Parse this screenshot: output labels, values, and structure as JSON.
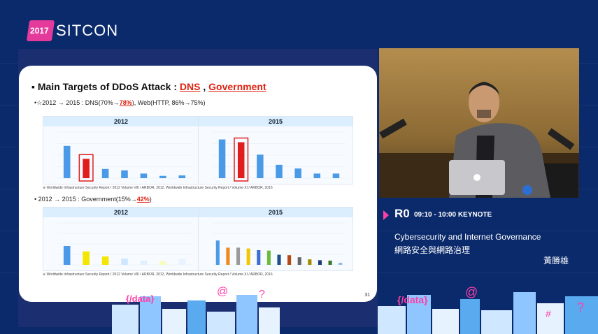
{
  "brand": {
    "year": "2017",
    "name": "SITCON"
  },
  "slide": {
    "title_prefix": "Main Targets of DDoS Attack : ",
    "title_dns": "DNS",
    "title_sep": ", ",
    "title_gov": "Government",
    "bullet1_prefix": "•☆2012 → 2015 : DNS(70%→",
    "bullet1_red": "78%",
    "bullet1_suffix": "), Web(HTTP, 86%→75%)",
    "bullet2_prefix": "•  2012 → 2015 : Government(15%→",
    "bullet2_red": "42%",
    "bullet2_suffix": ")",
    "chart_top_left_header": "2012",
    "chart_top_right_header": "2015",
    "chart_bottom_left_header": "2012",
    "chart_bottom_right_header": "2015",
    "caption_top": "※ Worldwide Infrastructure Security Report / 2012 Volume VIII / ARBOR, 2012, Worldwide Infrastructure Security Report / Volume XI / ARBOR, 2016",
    "caption_bottom": "※ Worldwide Infrastructure Security Report / 2012 Volume VIII / ARBOR, 2012, Worldwide Infrastructure Security Report / Volume XI / ARBOR, 2016",
    "page_number": "31"
  },
  "talk": {
    "room": "R0",
    "time": "09:10 - 10:00 KEYNOTE",
    "title_en": "Cybersecurity and Internet Governance",
    "title_zh": "網路安全與網路治理",
    "speaker": "黃勝雄"
  },
  "colors": {
    "background": "#0b2a6b",
    "accent_pink": "#ff3fa7",
    "bar_blue": "#4a9ae8",
    "bar_red": "#e11d1d"
  },
  "chart_data": [
    {
      "type": "bar",
      "title": "2012",
      "values": [
        70,
        42,
        20,
        17,
        10,
        5,
        6
      ],
      "highlight_index": 1
    },
    {
      "type": "bar",
      "title": "2015",
      "values": [
        84,
        78,
        51,
        29,
        21,
        10,
        10
      ],
      "highlight_index": 1
    },
    {
      "type": "bar",
      "title": "2012",
      "values": [
        45,
        32,
        20,
        15,
        10,
        9,
        14
      ],
      "colors": [
        "#4a9ae8",
        "#f3e600",
        "#f3e600",
        "#cfe6ff",
        "#e0f0ff",
        "#f6fbc0",
        "#eaf2ff"
      ]
    },
    {
      "type": "bar",
      "title": "2015",
      "values": [
        58,
        41,
        41,
        39,
        35,
        34,
        24,
        23,
        18,
        13,
        11,
        10,
        5
      ],
      "colors": [
        "#4a9ae8",
        "#f08a1e",
        "#9a9a9a",
        "#f3c600",
        "#3b6fd4",
        "#6cbb3a",
        "#1f4f8c",
        "#b24a14",
        "#666",
        "#a38a00",
        "#1f3c7a",
        "#3a7a2a",
        "#8fb8e8"
      ]
    }
  ]
}
